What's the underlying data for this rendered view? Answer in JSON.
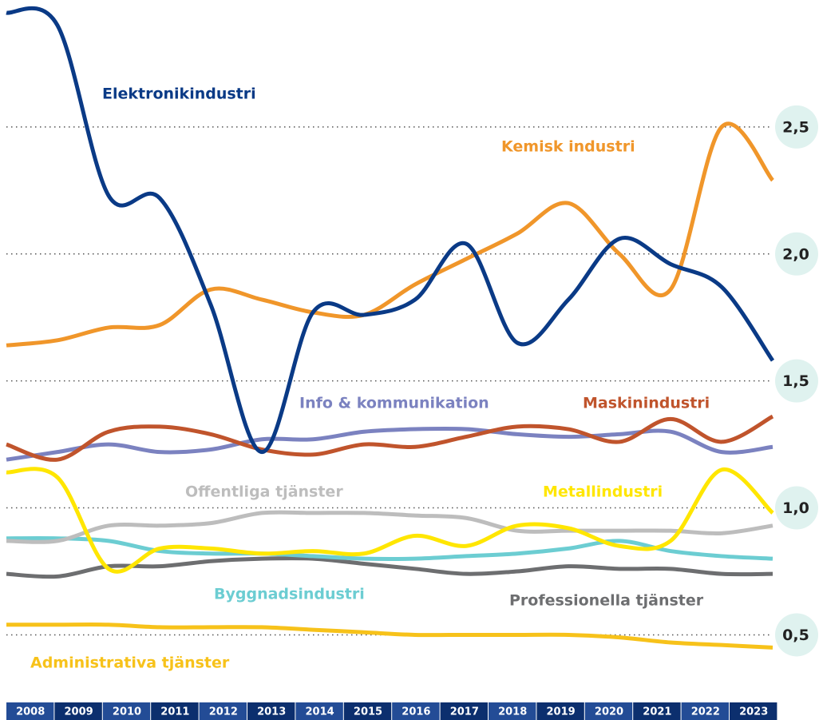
{
  "chart_data": {
    "type": "line",
    "categories": [
      "2008",
      "2009",
      "2010",
      "2011",
      "2012",
      "2013",
      "2014",
      "2015",
      "2016",
      "2017",
      "2018",
      "2019",
      "2020",
      "2021",
      "2022",
      "2023"
    ],
    "ylim": [
      0.3,
      3.0
    ],
    "yticks": [
      {
        "value": 0.5,
        "label": "0,5"
      },
      {
        "value": 1.0,
        "label": "1,0"
      },
      {
        "value": 1.5,
        "label": "1,5"
      },
      {
        "value": 2.0,
        "label": "2,0"
      },
      {
        "value": 2.5,
        "label": "2,5"
      }
    ],
    "grid": true,
    "series": [
      {
        "name": "Elektronikindustri",
        "color": "#0a3a86",
        "values": [
          2.95,
          2.9,
          2.23,
          2.22,
          1.8,
          1.22,
          1.77,
          1.76,
          1.82,
          2.04,
          1.65,
          1.82,
          2.06,
          1.96,
          1.87,
          1.58
        ]
      },
      {
        "name": "Kemisk industri",
        "color": "#f0962a",
        "values": [
          1.64,
          1.66,
          1.71,
          1.72,
          1.86,
          1.82,
          1.77,
          1.76,
          1.88,
          1.98,
          2.08,
          2.2,
          2.0,
          1.86,
          2.5,
          2.29
        ]
      },
      {
        "name": "Info & kommunikation",
        "color": "#7b82c0",
        "values": [
          1.19,
          1.22,
          1.25,
          1.22,
          1.23,
          1.27,
          1.27,
          1.3,
          1.31,
          1.31,
          1.29,
          1.28,
          1.29,
          1.3,
          1.22,
          1.24
        ]
      },
      {
        "name": "Maskinindustri",
        "color": "#c0542c",
        "values": [
          1.25,
          1.19,
          1.3,
          1.32,
          1.29,
          1.23,
          1.21,
          1.25,
          1.24,
          1.28,
          1.32,
          1.31,
          1.26,
          1.35,
          1.26,
          1.36
        ]
      },
      {
        "name": "Offentliga tjänster",
        "color": "#bdbdbd",
        "values": [
          0.87,
          0.87,
          0.93,
          0.93,
          0.94,
          0.98,
          0.98,
          0.98,
          0.97,
          0.96,
          0.91,
          0.91,
          0.91,
          0.91,
          0.9,
          0.93
        ]
      },
      {
        "name": "Metallindustri",
        "color": "#ffe600",
        "values": [
          1.14,
          1.12,
          0.76,
          0.84,
          0.84,
          0.82,
          0.83,
          0.82,
          0.89,
          0.85,
          0.93,
          0.92,
          0.85,
          0.87,
          1.15,
          0.98
        ]
      },
      {
        "name": "Byggnadsindustri",
        "color": "#6ccdd2",
        "values": [
          0.88,
          0.88,
          0.87,
          0.83,
          0.82,
          0.82,
          0.81,
          0.8,
          0.8,
          0.81,
          0.82,
          0.84,
          0.87,
          0.83,
          0.81,
          0.8
        ]
      },
      {
        "name": "Professionella tjänster",
        "color": "#6d6e70",
        "values": [
          0.74,
          0.73,
          0.77,
          0.77,
          0.79,
          0.8,
          0.8,
          0.78,
          0.76,
          0.74,
          0.75,
          0.77,
          0.76,
          0.76,
          0.74,
          0.74
        ]
      },
      {
        "name": "Administrativa tjänster",
        "color": "#f7c21a",
        "values": [
          0.54,
          0.54,
          0.54,
          0.53,
          0.53,
          0.53,
          0.52,
          0.51,
          0.5,
          0.5,
          0.5,
          0.5,
          0.49,
          0.47,
          0.46,
          0.45
        ]
      }
    ]
  }
}
